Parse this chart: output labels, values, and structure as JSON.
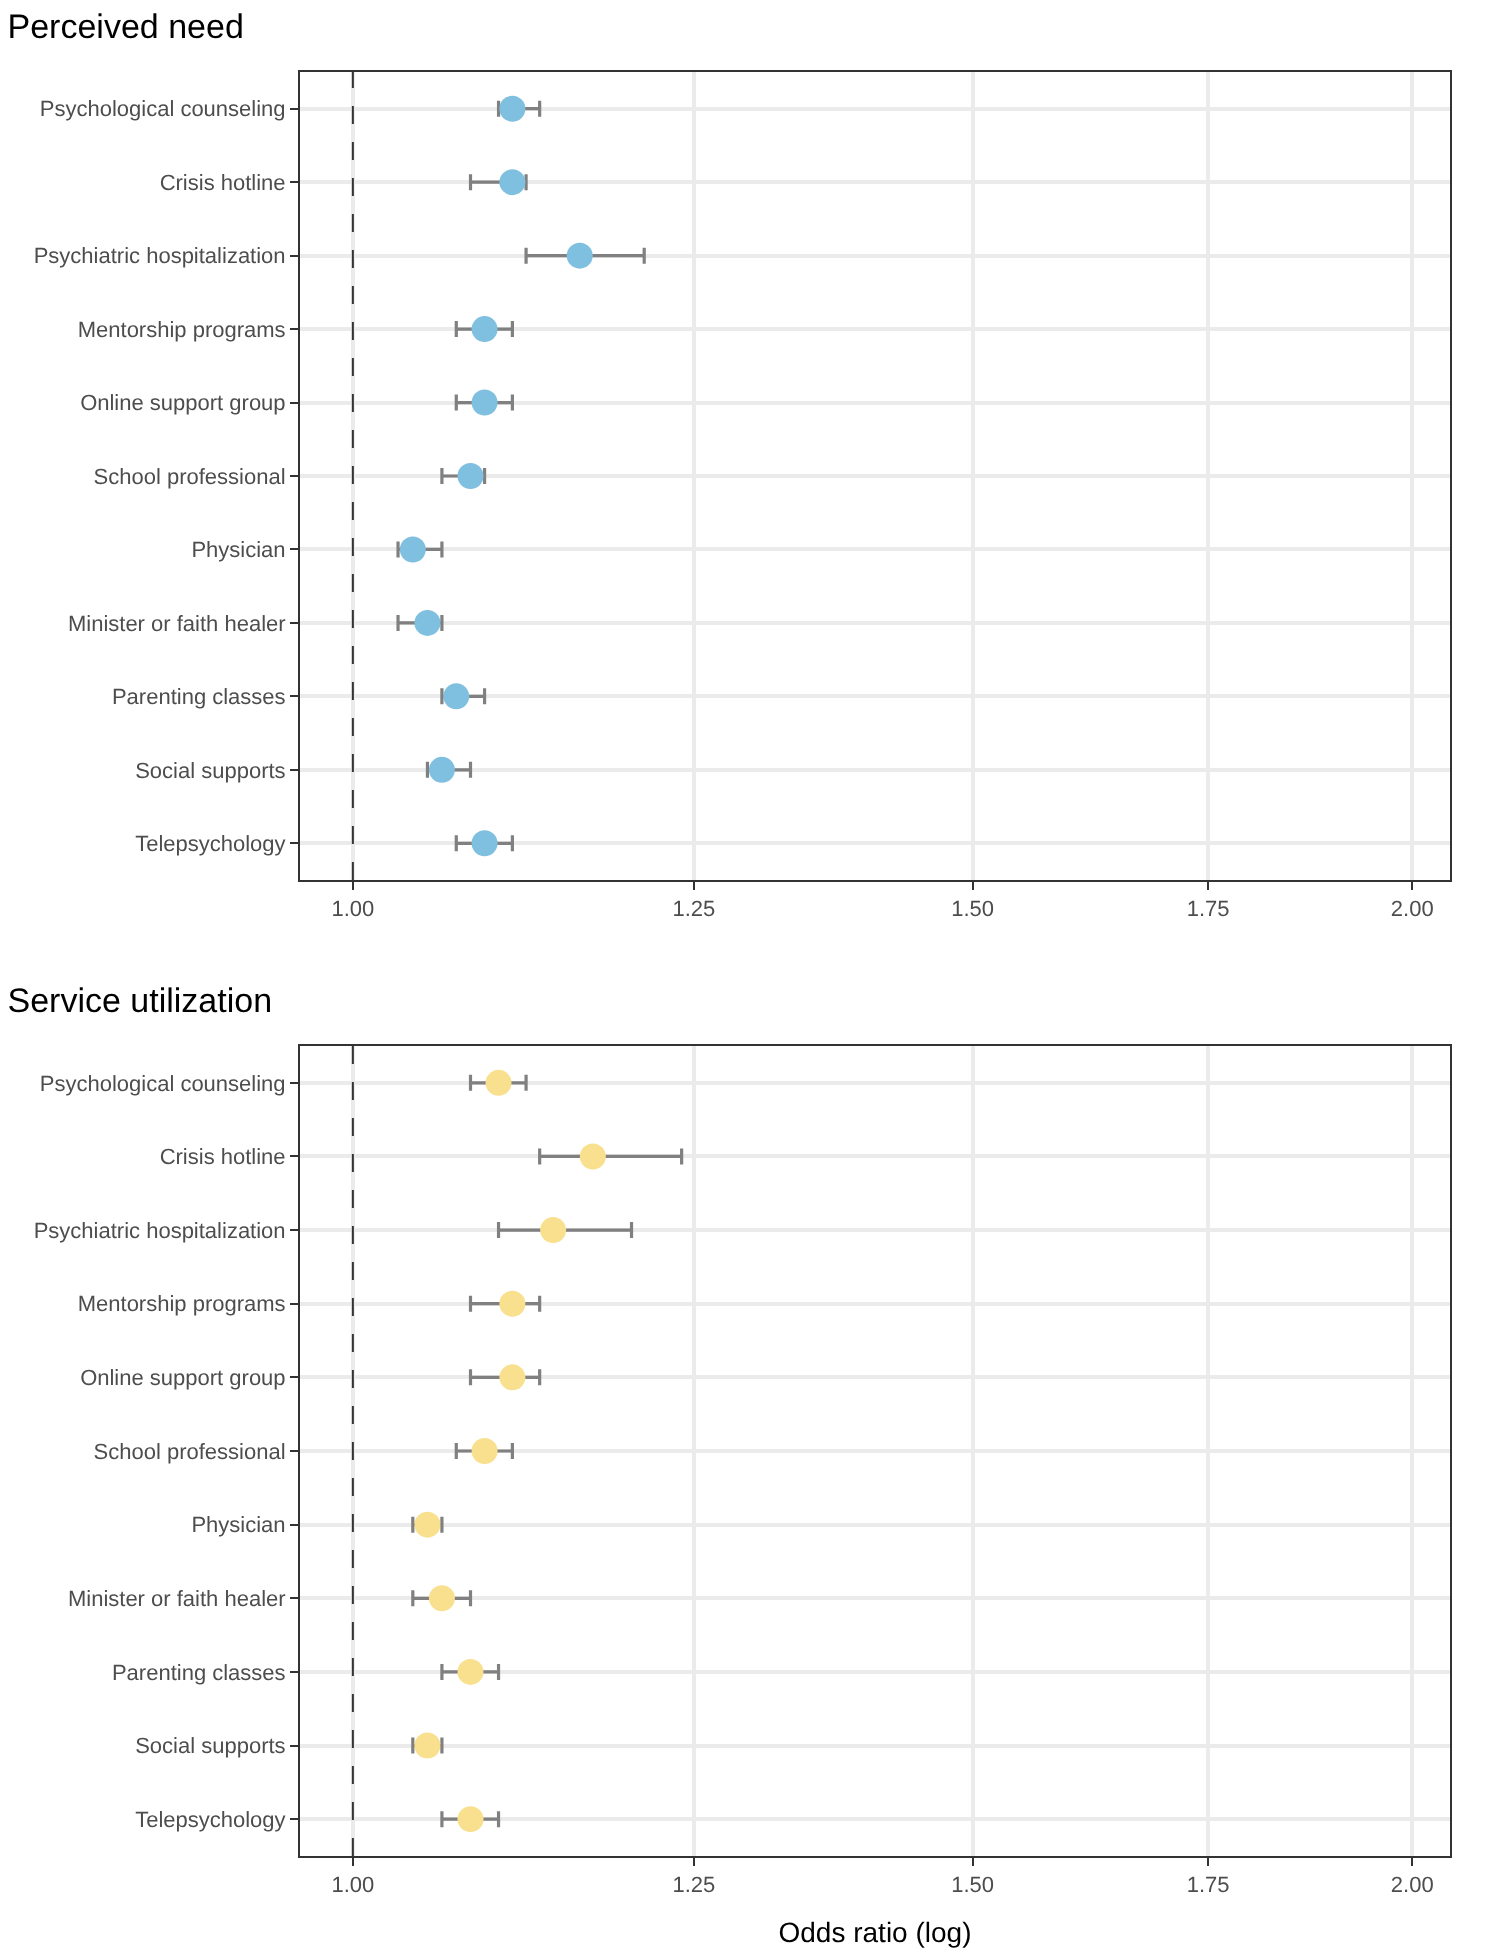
{
  "chart_data": [
    {
      "type": "scatter",
      "title": "Perceived need",
      "orientation": "horizontal",
      "categories": [
        "Psychological counseling",
        "Crisis hotline",
        "Psychiatric hospitalization",
        "Mentorship programs",
        "Online support group",
        "School professional",
        "Physician",
        "Minister or faith healer",
        "Parenting classes",
        "Social supports",
        "Telepsychology"
      ],
      "series": [
        {
          "color": "#7fbfdf",
          "values": [
            1.11,
            1.11,
            1.16,
            1.09,
            1.09,
            1.08,
            1.04,
            1.05,
            1.07,
            1.06,
            1.09
          ],
          "errors": [
            [
              1.1,
              1.13
            ],
            [
              1.08,
              1.12
            ],
            [
              1.12,
              1.21
            ],
            [
              1.07,
              1.11
            ],
            [
              1.07,
              1.11
            ],
            [
              1.06,
              1.09
            ],
            [
              1.03,
              1.06
            ],
            [
              1.03,
              1.06
            ],
            [
              1.06,
              1.09
            ],
            [
              1.05,
              1.08
            ],
            [
              1.07,
              1.11
            ]
          ]
        }
      ],
      "xlim": [
        0.966,
        2.05
      ],
      "xticks": [
        {
          "value": 1,
          "label": "1.00"
        },
        {
          "value": 1.25,
          "label": "1.25"
        },
        {
          "value": 1.5,
          "label": "1.50"
        },
        {
          "value": 1.75,
          "label": "1.75"
        },
        {
          "value": 2,
          "label": "2.00"
        }
      ],
      "log": "x",
      "grid": true,
      "marker": "circle",
      "ref_lines": [
        {
          "axis": "x",
          "value": 1,
          "line_style": "dashed",
          "color": "#333333"
        }
      ]
    },
    {
      "type": "scatter",
      "title": "Service utilization",
      "xlabel": "Odds ratio (log)",
      "orientation": "horizontal",
      "categories": [
        "Psychological counseling",
        "Crisis hotline",
        "Psychiatric hospitalization",
        "Mentorship programs",
        "Online support group",
        "School professional",
        "Physician",
        "Minister or faith healer",
        "Parenting classes",
        "Social supports",
        "Telepsychology"
      ],
      "series": [
        {
          "color": "#f8e08e",
          "values": [
            1.1,
            1.17,
            1.14,
            1.11,
            1.11,
            1.09,
            1.05,
            1.06,
            1.08,
            1.05,
            1.08
          ],
          "errors": [
            [
              1.08,
              1.12
            ],
            [
              1.13,
              1.24
            ],
            [
              1.1,
              1.2
            ],
            [
              1.08,
              1.13
            ],
            [
              1.08,
              1.13
            ],
            [
              1.07,
              1.11
            ],
            [
              1.04,
              1.06
            ],
            [
              1.04,
              1.08
            ],
            [
              1.06,
              1.1
            ],
            [
              1.04,
              1.06
            ],
            [
              1.06,
              1.1
            ]
          ]
        }
      ],
      "xlim": [
        0.966,
        2.05
      ],
      "xticks": [
        {
          "value": 1,
          "label": "1.00"
        },
        {
          "value": 1.25,
          "label": "1.25"
        },
        {
          "value": 1.5,
          "label": "1.50"
        },
        {
          "value": 1.75,
          "label": "1.75"
        },
        {
          "value": 2,
          "label": "2.00"
        }
      ],
      "log": "x",
      "grid": true,
      "marker": "circle",
      "ref_lines": [
        {
          "axis": "x",
          "value": 1,
          "line_style": "dashed",
          "color": "#333333"
        }
      ]
    }
  ]
}
